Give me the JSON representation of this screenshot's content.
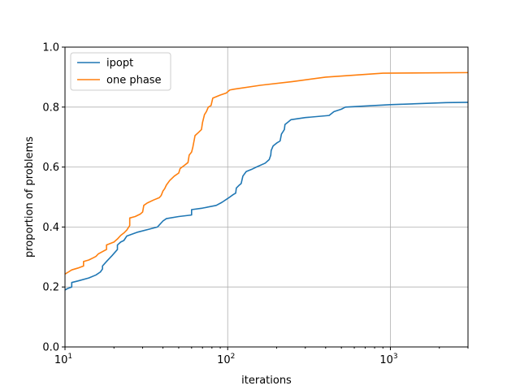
{
  "chart_data": {
    "type": "line",
    "xscale": "log",
    "xlim": [
      10,
      3000
    ],
    "ylim": [
      0.0,
      1.0
    ],
    "xlabel": "iterations",
    "ylabel": "proportion of problems",
    "grid": true,
    "legend_position": "upper-left",
    "x_ticks": [
      {
        "value": 10,
        "base": "10",
        "exp": "1"
      },
      {
        "value": 100,
        "base": "10",
        "exp": "2"
      },
      {
        "value": 1000,
        "base": "10",
        "exp": "3"
      }
    ],
    "y_ticks": [
      {
        "value": 0.0,
        "label": "0.0"
      },
      {
        "value": 0.2,
        "label": "0.2"
      },
      {
        "value": 0.4,
        "label": "0.4"
      },
      {
        "value": 0.6,
        "label": "0.6"
      },
      {
        "value": 0.8,
        "label": "0.8"
      },
      {
        "value": 1.0,
        "label": "1.0"
      }
    ],
    "series": [
      {
        "name": "ipopt",
        "color": "#1f77b4",
        "points": [
          [
            10,
            0.19
          ],
          [
            10.4,
            0.195
          ],
          [
            11,
            0.2
          ],
          [
            11,
            0.215
          ],
          [
            12,
            0.22
          ],
          [
            14,
            0.23
          ],
          [
            15.5,
            0.24
          ],
          [
            16.5,
            0.25
          ],
          [
            17,
            0.26
          ],
          [
            17,
            0.27
          ],
          [
            18,
            0.285
          ],
          [
            19.5,
            0.305
          ],
          [
            21,
            0.325
          ],
          [
            21,
            0.34
          ],
          [
            22,
            0.35
          ],
          [
            23,
            0.355
          ],
          [
            24,
            0.37
          ],
          [
            28,
            0.383
          ],
          [
            33,
            0.393
          ],
          [
            37,
            0.4
          ],
          [
            40,
            0.42
          ],
          [
            42,
            0.428
          ],
          [
            50,
            0.435
          ],
          [
            60,
            0.44
          ],
          [
            60,
            0.458
          ],
          [
            70,
            0.463
          ],
          [
            85,
            0.472
          ],
          [
            92,
            0.482
          ],
          [
            100,
            0.495
          ],
          [
            108,
            0.508
          ],
          [
            112,
            0.513
          ],
          [
            113,
            0.53
          ],
          [
            118,
            0.54
          ],
          [
            121,
            0.545
          ],
          [
            124,
            0.57
          ],
          [
            130,
            0.585
          ],
          [
            140,
            0.592
          ],
          [
            150,
            0.6
          ],
          [
            170,
            0.613
          ],
          [
            180,
            0.625
          ],
          [
            184,
            0.64
          ],
          [
            185,
            0.655
          ],
          [
            190,
            0.67
          ],
          [
            195,
            0.675
          ],
          [
            200,
            0.68
          ],
          [
            210,
            0.687
          ],
          [
            214,
            0.71
          ],
          [
            220,
            0.72
          ],
          [
            223,
            0.725
          ],
          [
            225,
            0.742
          ],
          [
            235,
            0.75
          ],
          [
            245,
            0.758
          ],
          [
            300,
            0.765
          ],
          [
            420,
            0.772
          ],
          [
            450,
            0.785
          ],
          [
            500,
            0.793
          ],
          [
            520,
            0.798
          ],
          [
            530,
            0.8
          ],
          [
            1000,
            0.808
          ],
          [
            2200,
            0.815
          ],
          [
            3000,
            0.816
          ]
        ]
      },
      {
        "name": "one phase",
        "color": "#ff7f0e",
        "points": [
          [
            10,
            0.243
          ],
          [
            10.5,
            0.25
          ],
          [
            11,
            0.257
          ],
          [
            12,
            0.263
          ],
          [
            13,
            0.27
          ],
          [
            13,
            0.285
          ],
          [
            14,
            0.29
          ],
          [
            15,
            0.298
          ],
          [
            15.5,
            0.302
          ],
          [
            16,
            0.31
          ],
          [
            17,
            0.318
          ],
          [
            18,
            0.325
          ],
          [
            18,
            0.34
          ],
          [
            20,
            0.35
          ],
          [
            21,
            0.36
          ],
          [
            22,
            0.372
          ],
          [
            23,
            0.38
          ],
          [
            24,
            0.39
          ],
          [
            25,
            0.405
          ],
          [
            25,
            0.43
          ],
          [
            27,
            0.435
          ],
          [
            29,
            0.443
          ],
          [
            30,
            0.45
          ],
          [
            30.5,
            0.472
          ],
          [
            32,
            0.48
          ],
          [
            35,
            0.49
          ],
          [
            38,
            0.498
          ],
          [
            39,
            0.505
          ],
          [
            40,
            0.52
          ],
          [
            41,
            0.528
          ],
          [
            42,
            0.54
          ],
          [
            44,
            0.555
          ],
          [
            47,
            0.57
          ],
          [
            50,
            0.58
          ],
          [
            51,
            0.595
          ],
          [
            54,
            0.605
          ],
          [
            57,
            0.615
          ],
          [
            58,
            0.64
          ],
          [
            60,
            0.65
          ],
          [
            61,
            0.665
          ],
          [
            62,
            0.685
          ],
          [
            63,
            0.705
          ],
          [
            66,
            0.715
          ],
          [
            69,
            0.725
          ],
          [
            70,
            0.748
          ],
          [
            72,
            0.775
          ],
          [
            74,
            0.785
          ],
          [
            76,
            0.8
          ],
          [
            79,
            0.805
          ],
          [
            81,
            0.83
          ],
          [
            90,
            0.84
          ],
          [
            98,
            0.847
          ],
          [
            103,
            0.857
          ],
          [
            110,
            0.86
          ],
          [
            160,
            0.873
          ],
          [
            250,
            0.885
          ],
          [
            400,
            0.9
          ],
          [
            900,
            0.913
          ],
          [
            3000,
            0.915
          ]
        ]
      }
    ]
  }
}
